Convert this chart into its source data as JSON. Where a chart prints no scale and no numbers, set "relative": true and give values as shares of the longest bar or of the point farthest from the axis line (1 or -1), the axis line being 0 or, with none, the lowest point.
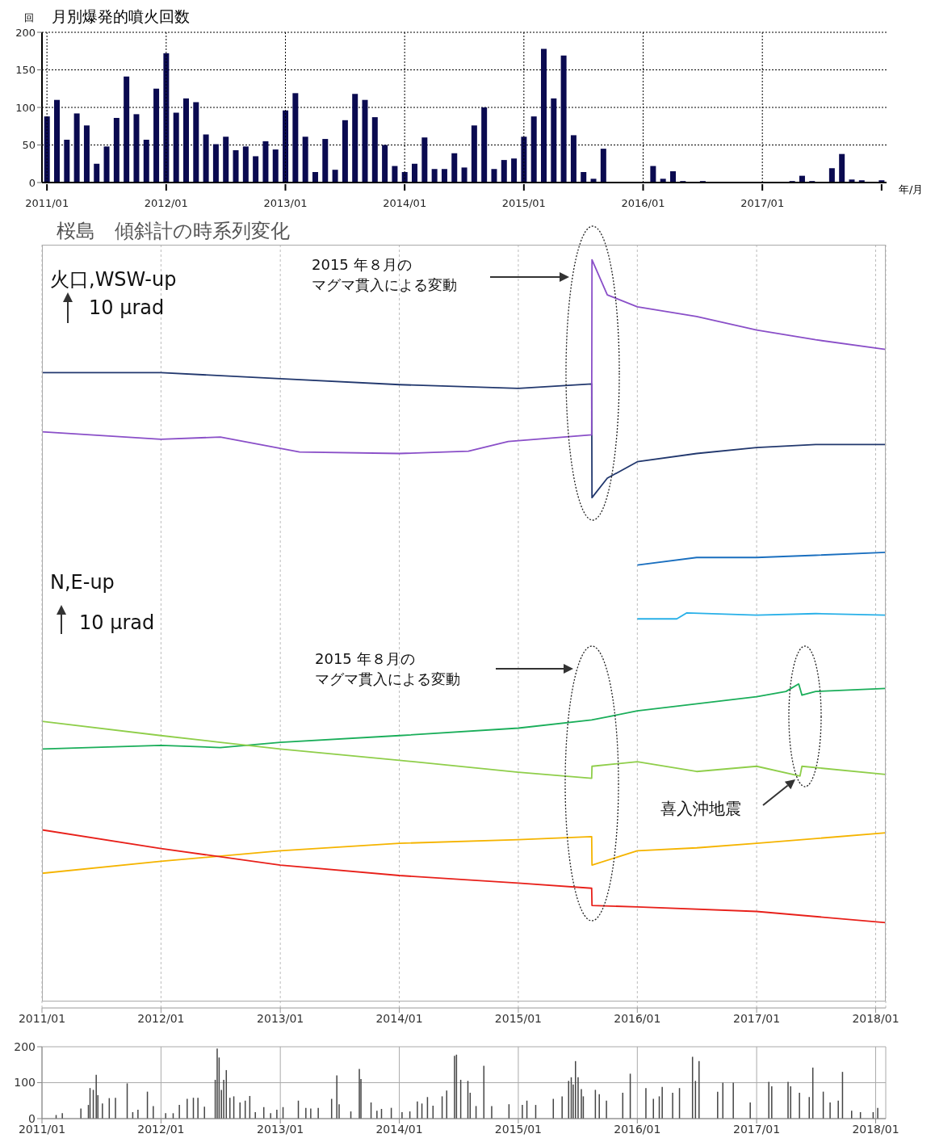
{
  "chart_data": [
    {
      "type": "bar",
      "title": "月別爆発的噴火回数",
      "ylabel": "回",
      "xlabel": "年/月",
      "categories": [
        "2011/01",
        null,
        null,
        null,
        null,
        null,
        null,
        null,
        null,
        null,
        null,
        null,
        "2012/01",
        null,
        null,
        null,
        null,
        null,
        null,
        null,
        null,
        null,
        null,
        null,
        "2013/01",
        null,
        null,
        null,
        null,
        null,
        null,
        null,
        null,
        null,
        null,
        null,
        "2014/01",
        null,
        null,
        null,
        null,
        null,
        null,
        null,
        null,
        null,
        null,
        null,
        "2015/01",
        null,
        null,
        null,
        null,
        null,
        null,
        null,
        null,
        null,
        null,
        null,
        "2016/01",
        null,
        null,
        null,
        null,
        null,
        null,
        null,
        null,
        null,
        null,
        null,
        "2017/01",
        null,
        null,
        null,
        null,
        null,
        null,
        null,
        null,
        null,
        null,
        null,
        null
      ],
      "values": [
        88,
        110,
        57,
        92,
        76,
        25,
        48,
        86,
        141,
        91,
        57,
        125,
        172,
        93,
        112,
        107,
        64,
        51,
        61,
        43,
        48,
        35,
        55,
        44,
        96,
        119,
        61,
        14,
        58,
        17,
        83,
        118,
        110,
        87,
        50,
        22,
        14,
        25,
        60,
        18,
        18,
        39,
        20,
        76,
        100,
        18,
        30,
        32,
        61,
        88,
        178,
        112,
        169,
        63,
        14,
        5,
        45,
        0,
        0,
        0,
        0,
        22,
        5,
        15,
        2,
        0,
        2,
        0,
        0,
        0,
        0,
        0,
        0,
        0,
        0,
        2,
        9,
        2,
        1,
        19,
        38,
        4,
        3,
        0,
        3
      ],
      "color": "#0a0a50",
      "ylim": [
        0,
        200
      ],
      "yticks": [
        0,
        50,
        100,
        150,
        200
      ],
      "grid": true
    },
    {
      "type": "line",
      "title": "桜島　傾斜計の時系列変化",
      "relative": true,
      "grid": "x",
      "xlim": [
        "2011-01",
        "2018-02"
      ],
      "xticks": [
        {
          "value": "2011-01",
          "label": "2011/01"
        },
        {
          "value": "2012-01",
          "label": "2012/01"
        },
        {
          "value": "2013-01",
          "label": "2013/01"
        },
        {
          "value": "2014-01",
          "label": "2014/01"
        },
        {
          "value": "2015-01",
          "label": "2015/01"
        },
        {
          "value": "2016-01",
          "label": "2016/01"
        },
        {
          "value": "2017-01",
          "label": "2017/01"
        },
        {
          "value": "2018-01",
          "label": "2018/01"
        }
      ],
      "annotations": [
        "火口,WSW-up",
        "10 μrad",
        "N,E-up",
        "10 μrad",
        "2015 年８月のマグマ貫入による変動",
        "2015 年８月のマグマ貫入による変動",
        "喜入沖地震"
      ],
      "series": [
        {
          "color": "#22386e",
          "x": [
            "2011-01",
            "2012-01",
            "2013-01",
            "2014-01",
            "2015-01",
            "2015-08-14",
            "2015-08-15",
            "2015-10",
            "2016-01",
            "2016-07",
            "2017-01",
            "2017-07",
            "2018-02"
          ],
          "values": [
            0.849,
            0.849,
            0.841,
            0.833,
            0.828,
            0.834,
            0.682,
            0.708,
            0.73,
            0.741,
            0.749,
            0.753,
            0.753
          ]
        },
        {
          "color": "#8a4fc8",
          "x": [
            "2011-01",
            "2012-01",
            "2012-07",
            "2013-03",
            "2014-01",
            "2014-08",
            "2014-12",
            "2015-08-14",
            "2015-08-15",
            "2015-10",
            "2016-01",
            "2016-07",
            "2017-01",
            "2017-07",
            "2018-02"
          ],
          "values": [
            0.77,
            0.76,
            0.763,
            0.743,
            0.741,
            0.744,
            0.757,
            0.766,
            1.0,
            0.953,
            0.937,
            0.924,
            0.906,
            0.893,
            0.88
          ]
        },
        {
          "color": "#1a6fbf",
          "x": [
            "2016-01",
            "2016-07",
            "2017-01",
            "2017-07",
            "2018-02"
          ],
          "values": [
            0.592,
            0.602,
            0.602,
            0.605,
            0.609
          ]
        },
        {
          "color": "#28b0e8",
          "x": [
            "2016-01",
            "2016-05",
            "2016-06",
            "2017-01",
            "2017-07",
            "2018-02"
          ],
          "values": [
            0.52,
            0.52,
            0.528,
            0.525,
            0.527,
            0.525
          ]
        },
        {
          "color": "#1aae5a",
          "x": [
            "2011-01",
            "2012-01",
            "2012-07",
            "2013-01",
            "2014-01",
            "2015-01",
            "2015-08-14",
            "2015-10",
            "2016-01",
            "2017-01",
            "2017-04",
            "2017-05-10",
            "2017-05-20",
            "2017-07",
            "2018-02"
          ],
          "values": [
            0.346,
            0.351,
            0.348,
            0.355,
            0.364,
            0.374,
            0.385,
            0.389,
            0.397,
            0.416,
            0.423,
            0.433,
            0.418,
            0.423,
            0.427
          ]
        },
        {
          "color": "#8fce4a",
          "x": [
            "2011-01",
            "2012-01",
            "2012-07",
            "2013-01",
            "2014-01",
            "2015-01",
            "2015-08-14",
            "2015-08-15",
            "2016-01",
            "2016-07",
            "2017-01",
            "2017-05-14",
            "2017-05-20",
            "2018-02"
          ],
          "values": [
            0.383,
            0.364,
            0.355,
            0.346,
            0.331,
            0.315,
            0.307,
            0.323,
            0.329,
            0.316,
            0.323,
            0.31,
            0.323,
            0.312
          ]
        },
        {
          "color": "#f5b400",
          "x": [
            "2011-01",
            "2012-01",
            "2013-01",
            "2014-01",
            "2015-01",
            "2015-08-14",
            "2015-08-15",
            "2016-01",
            "2016-07",
            "2017-01",
            "2018-02"
          ],
          "values": [
            0.18,
            0.196,
            0.21,
            0.22,
            0.225,
            0.229,
            0.191,
            0.21,
            0.214,
            0.22,
            0.234
          ]
        },
        {
          "color": "#e8201a",
          "x": [
            "2011-01",
            "2012-01",
            "2013-01",
            "2014-01",
            "2015-01",
            "2015-08-14",
            "2015-08-15",
            "2016-01",
            "2017-01",
            "2018-02"
          ],
          "values": [
            0.238,
            0.213,
            0.191,
            0.177,
            0.167,
            0.16,
            0.137,
            0.135,
            0.129,
            0.114
          ]
        }
      ]
    },
    {
      "type": "bar",
      "color": "#444444",
      "ylim": [
        0,
        200
      ],
      "yticks": [
        0,
        100,
        200
      ],
      "grid": true,
      "xlim": [
        "2011-01",
        "2018-02"
      ],
      "xticks": [
        {
          "value": "2011-01",
          "label": "2011/01"
        },
        {
          "value": "2012-01",
          "label": "2012/01"
        },
        {
          "value": "2013-01",
          "label": "2013/01"
        },
        {
          "value": "2014-01",
          "label": "2014/01"
        },
        {
          "value": "2015-01",
          "label": "2015/01"
        },
        {
          "value": "2016-01",
          "label": "2016/01"
        },
        {
          "value": "2017-01",
          "label": "2017/01"
        },
        {
          "value": "2018-01",
          "label": "2018/01"
        }
      ],
      "x": [
        "2011-02-14",
        "2011-03-05",
        "2011-05-01",
        "2011-05-24",
        "2011-05-29",
        "2011-06-08",
        "2011-06-17",
        "2011-06-22",
        "2011-07-06",
        "2011-07-27",
        "2011-08-15",
        "2011-09-20",
        "2011-10-07",
        "2011-10-23",
        "2011-11-21",
        "2011-12-09",
        "2012-01-16",
        "2012-02-08",
        "2012-02-27",
        "2012-03-22",
        "2012-04-10",
        "2012-04-24",
        "2012-05-14",
        "2012-06-16",
        "2012-06-22",
        "2012-06-28",
        "2012-07-05",
        "2012-07-12",
        "2012-07-20",
        "2012-07-31",
        "2012-08-12",
        "2012-08-31",
        "2012-09-16",
        "2012-09-30",
        "2012-10-17",
        "2012-11-12",
        "2012-12-03",
        "2012-12-22",
        "2013-01-10",
        "2013-02-26",
        "2013-03-21",
        "2013-04-05",
        "2013-04-28",
        "2013-06-08",
        "2013-06-24",
        "2013-07-01",
        "2013-08-06",
        "2013-09-01",
        "2013-09-06",
        "2013-10-07",
        "2013-10-25",
        "2013-11-08",
        "2013-12-08",
        "2014-01-10",
        "2014-02-03",
        "2014-02-26",
        "2014-03-12",
        "2014-03-29",
        "2014-04-15",
        "2014-05-13",
        "2014-05-27",
        "2014-06-20",
        "2014-06-26",
        "2014-07-09",
        "2014-07-31",
        "2014-08-07",
        "2014-08-25",
        "2014-09-18",
        "2014-10-12",
        "2014-12-04",
        "2015-01-14",
        "2015-01-28",
        "2015-02-24",
        "2015-04-19",
        "2015-05-16",
        "2015-06-05",
        "2015-06-13",
        "2015-06-19",
        "2015-06-26",
        "2015-07-04",
        "2015-07-14",
        "2015-07-20",
        "2015-08-26",
        "2015-09-07",
        "2015-09-29",
        "2015-11-18",
        "2015-12-11",
        "2016-01-28",
        "2016-02-20",
        "2016-03-09",
        "2016-03-18",
        "2016-04-19",
        "2016-05-10",
        "2016-06-19",
        "2016-06-28",
        "2016-07-09",
        "2016-09-04",
        "2016-09-20",
        "2016-10-22",
        "2016-12-13",
        "2017-02-08",
        "2017-02-17",
        "2017-04-08",
        "2017-04-16",
        "2017-05-13",
        "2017-06-12",
        "2017-06-23",
        "2017-07-25",
        "2017-08-15",
        "2017-09-09",
        "2017-09-22",
        "2017-10-20",
        "2017-11-16",
        "2017-12-25",
        "2018-01-08"
      ],
      "values": [
        10,
        15,
        28,
        38,
        85,
        80,
        122,
        65,
        42,
        57,
        58,
        98,
        18,
        25,
        75,
        35,
        15,
        15,
        38,
        55,
        58,
        58,
        33,
        108,
        195,
        170,
        80,
        108,
        135,
        58,
        62,
        45,
        50,
        63,
        18,
        32,
        15,
        25,
        32,
        50,
        30,
        28,
        30,
        55,
        120,
        40,
        20,
        138,
        110,
        45,
        22,
        27,
        30,
        18,
        20,
        48,
        42,
        60,
        36,
        62,
        78,
        175,
        178,
        108,
        105,
        72,
        35,
        147,
        35,
        40,
        38,
        50,
        38,
        55,
        62,
        105,
        115,
        95,
        160,
        115,
        82,
        62,
        80,
        68,
        50,
        72,
        125,
        85,
        55,
        62,
        88,
        72,
        85,
        172,
        105,
        160,
        75,
        100,
        100,
        45,
        102,
        90,
        102,
        90,
        72,
        60,
        142,
        75,
        45,
        50,
        130,
        22,
        18,
        18,
        30
      ]
    }
  ]
}
